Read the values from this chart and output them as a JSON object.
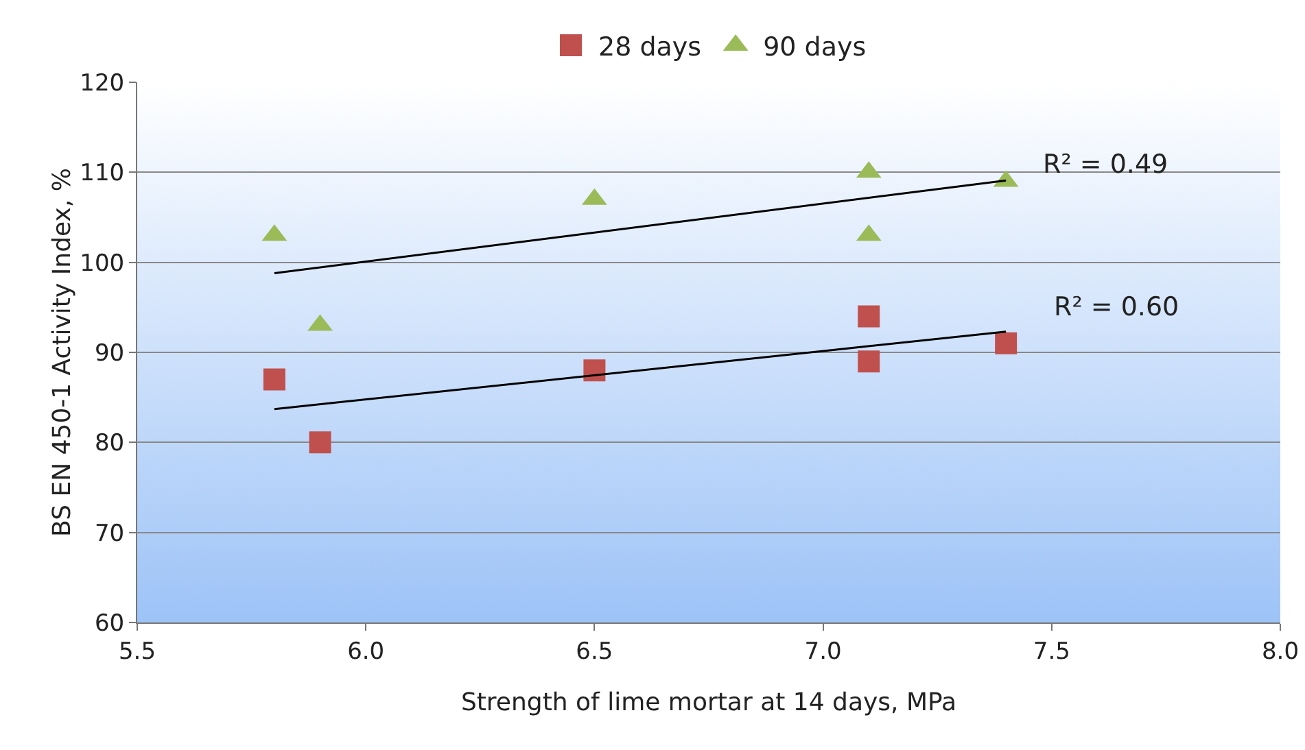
{
  "chart_data": {
    "type": "scatter",
    "xlabel": "Strength of lime mortar at 14 days, MPa",
    "ylabel": "BS EN 450-1 Activity Index, %",
    "xlim": [
      5.5,
      8.0
    ],
    "xticks": [
      {
        "value": 5.5,
        "label": "5.5"
      },
      {
        "value": 6.0,
        "label": "6.0"
      },
      {
        "value": 6.5,
        "label": "6.5"
      },
      {
        "value": 7.0,
        "label": "7.0"
      },
      {
        "value": 7.5,
        "label": "7.5"
      },
      {
        "value": 8.0,
        "label": "8.0"
      }
    ],
    "ylim": [
      60,
      120
    ],
    "yticks": [
      60,
      70,
      80,
      90,
      100,
      110,
      120
    ],
    "grid": "y",
    "legend": "top",
    "series": [
      {
        "name": "28 days",
        "color": "#c0504d",
        "marker": "square",
        "x": [
          5.8,
          5.9,
          6.5,
          7.1,
          7.1,
          7.4
        ],
        "values": [
          87,
          80,
          88,
          94,
          89,
          91
        ]
      },
      {
        "name": "90 days",
        "color": "#9bbb59",
        "marker": "triangle",
        "x": [
          5.8,
          5.9,
          6.5,
          7.1,
          7.1,
          7.4
        ],
        "values": [
          103,
          93,
          107,
          110,
          103,
          109
        ]
      },
      {
        "type": "line",
        "color": "#000000",
        "x": [
          5.8,
          7.4
        ],
        "values": [
          83.7,
          92.3
        ]
      },
      {
        "type": "line",
        "color": "#000000",
        "x": [
          5.8,
          7.4
        ],
        "values": [
          98.8,
          109.1
        ]
      }
    ],
    "annotations": [
      "R² = 0.49",
      "R² = 0.60"
    ]
  }
}
